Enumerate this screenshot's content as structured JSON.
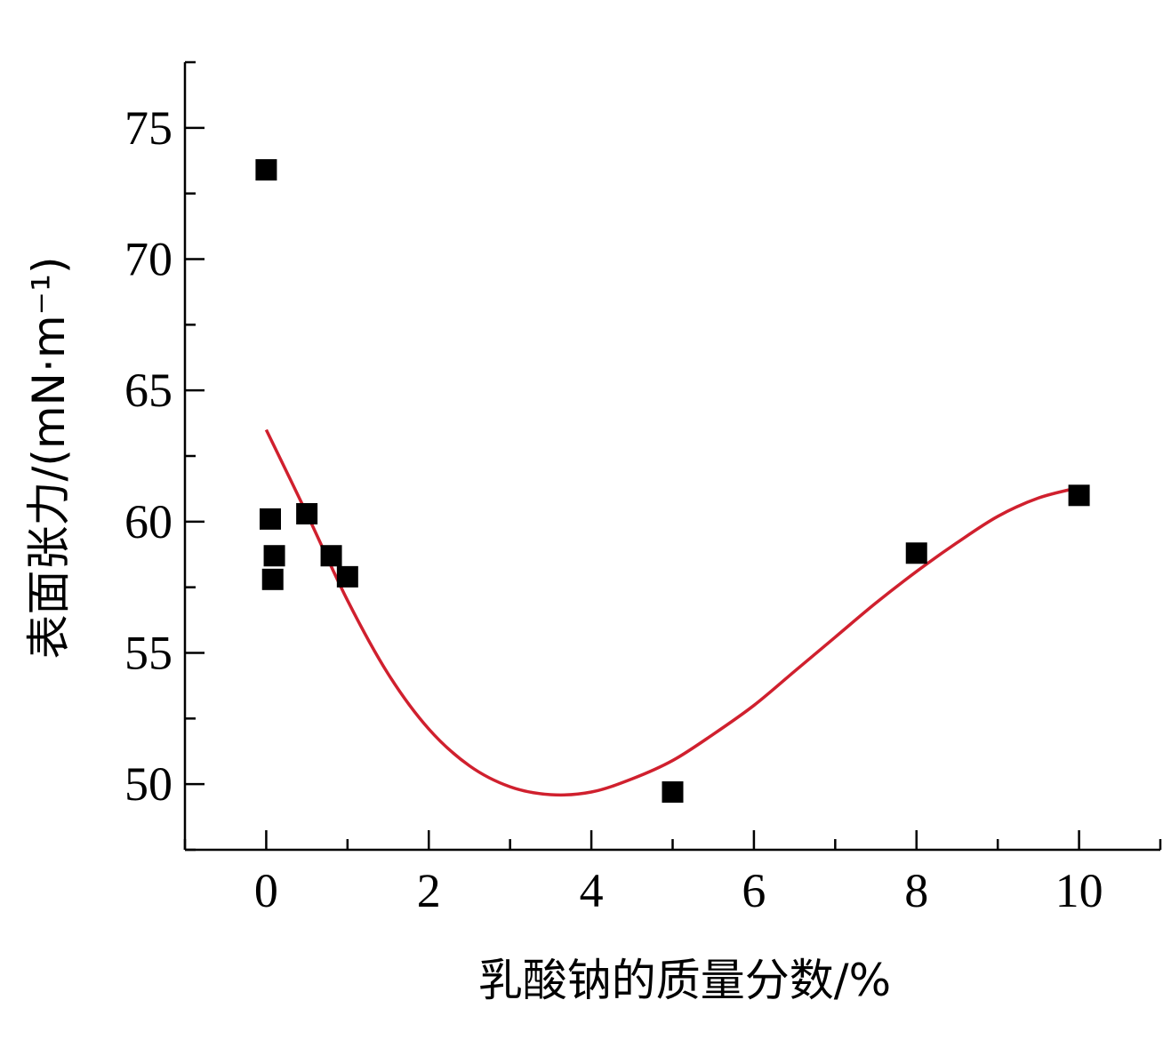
{
  "chart_data": {
    "type": "scatter",
    "title": "",
    "xlabel": "乳酸钠的质量分数/%",
    "ylabel": "表面张力/(mN·m⁻¹)",
    "xlim": [
      -1,
      11
    ],
    "ylim": [
      47.5,
      77.5
    ],
    "x_ticks": [
      0,
      2,
      4,
      6,
      8,
      10
    ],
    "x_tick_labels": [
      "0",
      "2",
      "4",
      "6",
      "8",
      "10"
    ],
    "y_ticks": [
      50,
      55,
      60,
      65,
      70,
      75
    ],
    "y_tick_labels": [
      "50",
      "55",
      "60",
      "65",
      "70",
      "75"
    ],
    "grid": false,
    "series": [
      {
        "kind": "scatter",
        "marker": "square",
        "color": "#000000",
        "points": [
          {
            "x": 0.0,
            "y": 73.4
          },
          {
            "x": 0.05,
            "y": 60.1
          },
          {
            "x": 0.08,
            "y": 57.8
          },
          {
            "x": 0.1,
            "y": 58.7
          },
          {
            "x": 0.5,
            "y": 60.3
          },
          {
            "x": 0.8,
            "y": 58.7
          },
          {
            "x": 1.0,
            "y": 57.9
          },
          {
            "x": 5.0,
            "y": 49.7
          },
          {
            "x": 8.0,
            "y": 58.8
          },
          {
            "x": 10.0,
            "y": 61.0
          }
        ]
      },
      {
        "kind": "line",
        "color": "#d0202e",
        "x": [
          0,
          0.5,
          1,
          1.5,
          2,
          2.5,
          3,
          3.5,
          4,
          4.5,
          5,
          5.5,
          6,
          6.5,
          7,
          7.5,
          8,
          8.5,
          9,
          9.5,
          10
        ],
        "y": [
          63.5,
          60.3,
          57.0,
          54.2,
          52.1,
          50.7,
          49.9,
          49.6,
          49.7,
          50.2,
          50.9,
          51.9,
          53.0,
          54.3,
          55.6,
          56.9,
          58.1,
          59.2,
          60.2,
          60.9,
          61.3
        ]
      }
    ]
  }
}
